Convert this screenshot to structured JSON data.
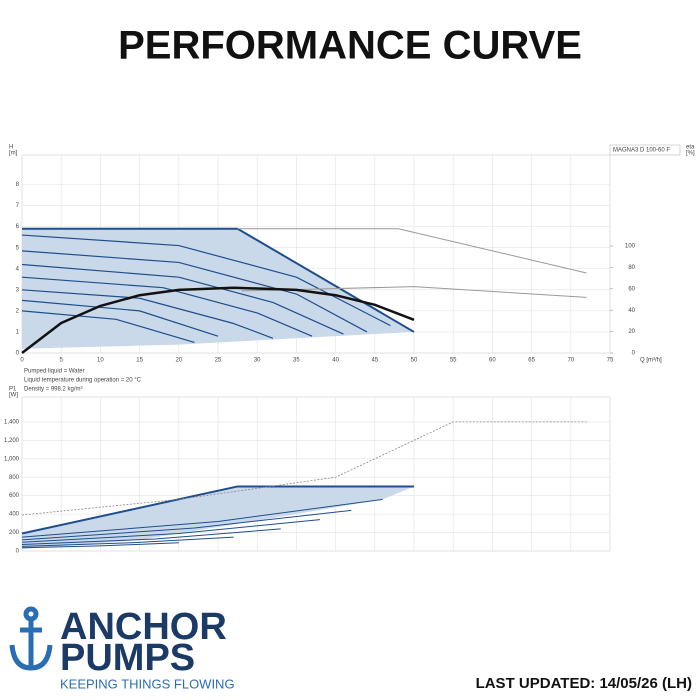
{
  "title": "PERFORMANCE CURVE",
  "logo": {
    "line1": "ANCHOR",
    "line2": "PUMPS",
    "tagline": "KEEPING THINGS FLOWING"
  },
  "updated": "LAST UPDATED: 14/05/26 (LH)",
  "chart_data": [
    {
      "type": "line",
      "model": "MAGNA3 D 100-60 F",
      "ylabel": [
        "H",
        "[m]"
      ],
      "y2label": [
        "eta",
        "[%]"
      ],
      "xlabel": "Q [m³/h]",
      "notes": [
        "Pumped liquid = Water",
        "Liquid temperature during operation = 20 °C",
        "Density = 998.2 kg/m³"
      ],
      "xlim": [
        0,
        75
      ],
      "xticks": [
        0,
        5,
        10,
        15,
        20,
        25,
        30,
        35,
        40,
        45,
        50,
        55,
        60,
        65,
        70,
        75
      ],
      "xtick_labels": true,
      "ylim": [
        0,
        9.4
      ],
      "yticks": [
        0,
        1,
        2,
        3,
        4,
        5,
        6,
        7,
        8
      ],
      "y2lim": [
        0,
        185
      ],
      "y2ticks": [
        0,
        20,
        40,
        60,
        80,
        100
      ],
      "grid": true,
      "series": [
        {
          "fill": "#c9d9e9",
          "x": [
            0,
            27.5,
            50,
            50,
            40,
            30,
            20,
            10,
            0
          ],
          "values": [
            5.9,
            5.9,
            1.0,
            1.0,
            0.8,
            0.6,
            0.4,
            0.3,
            0.2
          ]
        },
        {
          "color": "#1f4e8c",
          "width": 2,
          "x": [
            0,
            27.5,
            50
          ],
          "values": [
            5.9,
            5.9,
            1.0
          ]
        },
        {
          "color": "#1f4e8c",
          "width": 1.2,
          "x": [
            0,
            20,
            35,
            47
          ],
          "values": [
            5.6,
            5.1,
            3.6,
            1.3
          ]
        },
        {
          "color": "#1f4e8c",
          "width": 1.2,
          "x": [
            0,
            20,
            35,
            44
          ],
          "values": [
            4.85,
            4.3,
            2.8,
            1.0
          ]
        },
        {
          "color": "#1f4e8c",
          "width": 1.2,
          "x": [
            0,
            20,
            32,
            41
          ],
          "values": [
            4.2,
            3.6,
            2.4,
            0.9
          ]
        },
        {
          "color": "#1f4e8c",
          "width": 1.2,
          "x": [
            0,
            18,
            30,
            37
          ],
          "values": [
            3.6,
            3.1,
            1.9,
            0.8
          ]
        },
        {
          "color": "#1f4e8c",
          "width": 1.2,
          "x": [
            0,
            15,
            27,
            32
          ],
          "values": [
            3.0,
            2.6,
            1.4,
            0.7
          ]
        },
        {
          "color": "#1f4e8c",
          "width": 1.2,
          "x": [
            0,
            15,
            25
          ],
          "values": [
            2.5,
            2.0,
            0.8
          ]
        },
        {
          "color": "#1f4e8c",
          "width": 1.2,
          "x": [
            0,
            12,
            22
          ],
          "values": [
            2.0,
            1.6,
            0.5
          ]
        },
        {
          "color": "#999999",
          "width": 1,
          "x": [
            27.5,
            48,
            72
          ],
          "values": [
            5.9,
            5.9,
            3.8
          ]
        },
        {
          "color": "#999999",
          "width": 1,
          "axis": "y2",
          "x": [
            28,
            50,
            72
          ],
          "values": [
            58,
            62,
            52
          ]
        },
        {
          "color": "#111111",
          "width": 2.5,
          "axis": "y2",
          "x": [
            0,
            5,
            10,
            15,
            20,
            27,
            35,
            40,
            45,
            50
          ],
          "values": [
            0,
            28,
            44,
            54,
            59,
            61,
            59,
            54,
            45,
            31
          ]
        }
      ]
    },
    {
      "type": "line",
      "ylabel": [
        "P1",
        "[W]"
      ],
      "xlim": [
        0,
        75
      ],
      "xticks": [
        0,
        5,
        10,
        15,
        20,
        25,
        30,
        35,
        40,
        45,
        50,
        55,
        60,
        65,
        70,
        75
      ],
      "xtick_labels": false,
      "ylim": [
        0,
        1670
      ],
      "yticks": [
        0,
        200,
        400,
        600,
        800,
        {
          "value": 1000,
          "label": "1,000"
        },
        {
          "value": 1200,
          "label": "1,200"
        },
        {
          "value": 1400,
          "label": "1,400"
        }
      ],
      "grid": true,
      "series": [
        {
          "fill": "#c9d9e9",
          "x": [
            0,
            27.5,
            50,
            46,
            30,
            15,
            0
          ],
          "values": [
            190,
            700,
            700,
            560,
            330,
            120,
            20
          ]
        },
        {
          "color": "#1f4e8c",
          "width": 2,
          "x": [
            0,
            27.5,
            50
          ],
          "values": [
            190,
            700,
            700
          ]
        },
        {
          "color": "#1f4e8c",
          "width": 1,
          "x": [
            0,
            25,
            46
          ],
          "values": [
            150,
            320,
            560
          ]
        },
        {
          "color": "#1f4e8c",
          "width": 1,
          "x": [
            0,
            22,
            42
          ],
          "values": [
            120,
            250,
            440
          ]
        },
        {
          "color": "#1f4e8c",
          "width": 1,
          "x": [
            0,
            20,
            38
          ],
          "values": [
            95,
            190,
            340
          ]
        },
        {
          "color": "#1f4e8c",
          "width": 1,
          "x": [
            0,
            17,
            33
          ],
          "values": [
            70,
            130,
            240
          ]
        },
        {
          "color": "#1f4e8c",
          "width": 1,
          "x": [
            0,
            14,
            27
          ],
          "values": [
            50,
            90,
            150
          ]
        },
        {
          "color": "#1f4e8c",
          "width": 1,
          "x": [
            0,
            10,
            20
          ],
          "values": [
            35,
            55,
            90
          ]
        },
        {
          "color": "#888888",
          "width": 0.8,
          "dash": true,
          "x": [
            0,
            20,
            40,
            55,
            72
          ],
          "values": [
            390,
            560,
            800,
            1400,
            1400
          ]
        }
      ]
    }
  ]
}
